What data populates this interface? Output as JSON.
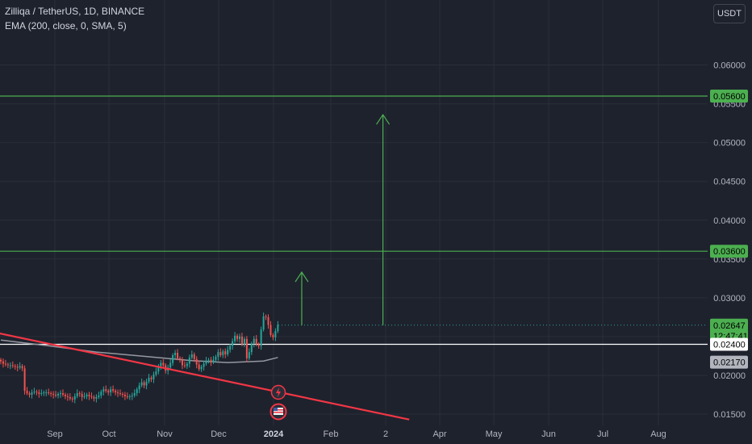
{
  "header": {
    "symbol_line": "Zilliqa / TetherUS, 1D, BINANCE",
    "indicator_line": "EMA (200, close, 0, SMA, 5)",
    "currency_label": "USDT"
  },
  "colors": {
    "background": "#1e222d",
    "up": "#26a69a",
    "down": "#ef5350",
    "level_line": "#4caf50",
    "trend_line": "#f23645",
    "ema": "#9598a1",
    "support_line": "#ffffff"
  },
  "chart_data": {
    "type": "candlestick",
    "title": "Zilliqa / TetherUS, 1D, BINANCE",
    "indicator": "EMA (200, close, 0, SMA, 5)",
    "y_ticks": [
      "0.06000",
      "0.05500",
      "0.05000",
      "0.04500",
      "0.04000",
      "0.03500",
      "0.03000",
      "0.02500",
      "0.02000",
      "0.01500"
    ],
    "y_tick_values": [
      0.06,
      0.055,
      0.05,
      0.045,
      0.04,
      0.035,
      0.03,
      0.025,
      0.02,
      0.015
    ],
    "x_ticks": [
      "Sep",
      "Oct",
      "Nov",
      "Dec",
      "2024",
      "Feb",
      "2",
      "Apr",
      "May",
      "Jun",
      "Jul",
      "Aug"
    ],
    "ylim": [
      0.0138,
      0.0655
    ],
    "price_tags": [
      {
        "label": "0.05600",
        "value": 0.056,
        "style": "green"
      },
      {
        "label": "0.03600",
        "value": 0.036,
        "style": "green"
      },
      {
        "label": "0.02647",
        "value": 0.02647,
        "style": "green"
      },
      {
        "label": "12:47:41",
        "value": 0.0251,
        "style": "green-sub"
      },
      {
        "label": "0.02400",
        "value": 0.024,
        "style": "white"
      },
      {
        "label": "0.02170",
        "value": 0.0217,
        "style": "gray"
      }
    ],
    "horizontal_levels": [
      {
        "value": 0.056,
        "color": "green"
      },
      {
        "value": 0.036,
        "color": "green"
      },
      {
        "value": 0.024,
        "color": "white"
      }
    ],
    "last_price": 0.02647,
    "closes": [
      0.0218,
      0.0215,
      0.0214,
      0.0213,
      0.0213,
      0.0212,
      0.0211,
      0.021,
      0.0212,
      0.0209,
      0.018,
      0.0177,
      0.0175,
      0.0178,
      0.0179,
      0.0178,
      0.0176,
      0.0177,
      0.0178,
      0.0178,
      0.0177,
      0.0176,
      0.0175,
      0.0174,
      0.0176,
      0.0177,
      0.0175,
      0.0173,
      0.0172,
      0.017,
      0.0169,
      0.0173,
      0.0177,
      0.0176,
      0.0172,
      0.0173,
      0.0175,
      0.0173,
      0.0172,
      0.017,
      0.0172,
      0.0174,
      0.0179,
      0.0182,
      0.018,
      0.0178,
      0.0182,
      0.018,
      0.0178,
      0.0177,
      0.0176,
      0.0175,
      0.0173,
      0.0172,
      0.0173,
      0.0174,
      0.0177,
      0.0182,
      0.0187,
      0.0191,
      0.0187,
      0.0192,
      0.0197,
      0.0195,
      0.0201,
      0.0205,
      0.0212,
      0.0216,
      0.0213,
      0.0206,
      0.021,
      0.0216,
      0.0226,
      0.0229,
      0.0222,
      0.022,
      0.0213,
      0.0212,
      0.0215,
      0.0223,
      0.0227,
      0.0221,
      0.0214,
      0.0208,
      0.0211,
      0.0215,
      0.0219,
      0.022,
      0.0217,
      0.022,
      0.0224,
      0.023,
      0.0226,
      0.0231,
      0.0227,
      0.0233,
      0.0238,
      0.0244,
      0.0251,
      0.0247,
      0.025,
      0.024,
      0.0247,
      0.0222,
      0.023,
      0.0241,
      0.0247,
      0.024,
      0.0238,
      0.0259,
      0.0276,
      0.0275,
      0.0265,
      0.0252,
      0.0249,
      0.0257,
      0.0265
    ],
    "ema_points": [
      {
        "i": 0,
        "v": 0.02455
      },
      {
        "i": 20,
        "v": 0.0238
      },
      {
        "i": 40,
        "v": 0.023
      },
      {
        "i": 60,
        "v": 0.02245
      },
      {
        "i": 80,
        "v": 0.0219
      },
      {
        "i": 95,
        "v": 0.02165
      },
      {
        "i": 110,
        "v": 0.02185
      },
      {
        "i": 116,
        "v": 0.0223
      }
    ],
    "trend_line": {
      "from": {
        "i": -2,
        "v": 0.0255
      },
      "to": {
        "i": 171,
        "v": 0.0143
      }
    },
    "projection_arrows": [
      {
        "i": 126,
        "from": 0.02647,
        "to": 0.0333
      },
      {
        "i": 160,
        "from": 0.02647,
        "to": 0.0536
      }
    ]
  }
}
